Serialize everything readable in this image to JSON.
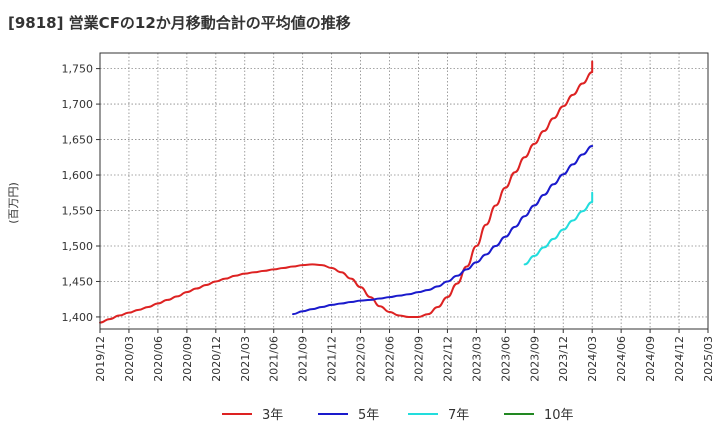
{
  "chart_data": {
    "type": "line",
    "title": "[9818]  営業CFの12か月移動合計の平均値の推移",
    "ylabel": "(百万円)",
    "xlabel": "",
    "ylim": [
      1383,
      1772
    ],
    "xlim": [
      "2019/12",
      "2025/03"
    ],
    "grid": true,
    "legend_placement": "bottom",
    "x_ticks": [
      "2019/12",
      "2020/03",
      "2020/06",
      "2020/09",
      "2020/12",
      "2021/03",
      "2021/06",
      "2021/09",
      "2021/12",
      "2022/03",
      "2022/06",
      "2022/09",
      "2022/12",
      "2023/03",
      "2023/06",
      "2023/09",
      "2023/12",
      "2024/03",
      "2024/06",
      "2024/09",
      "2024/12",
      "2025/03"
    ],
    "y_ticks": [
      1400,
      1450,
      1500,
      1550,
      1600,
      1650,
      1700,
      1750
    ],
    "y_tick_labels": [
      "1,400",
      "1,450",
      "1,500",
      "1,550",
      "1,600",
      "1,650",
      "1,700",
      "1,750"
    ],
    "series": [
      {
        "name": "3年",
        "color": "#dd2222",
        "points": [
          [
            "2019/12",
            1392
          ],
          [
            "2020/01",
            1397
          ],
          [
            "2020/02",
            1402
          ],
          [
            "2020/03",
            1406
          ],
          [
            "2020/04",
            1410
          ],
          [
            "2020/05",
            1414
          ],
          [
            "2020/06",
            1419
          ],
          [
            "2020/07",
            1424
          ],
          [
            "2020/08",
            1429
          ],
          [
            "2020/09",
            1435
          ],
          [
            "2020/10",
            1440
          ],
          [
            "2020/11",
            1445
          ],
          [
            "2020/12",
            1450
          ],
          [
            "2021/01",
            1454
          ],
          [
            "2021/02",
            1458
          ],
          [
            "2021/03",
            1461
          ],
          [
            "2021/04",
            1463
          ],
          [
            "2021/05",
            1465
          ],
          [
            "2021/06",
            1467
          ],
          [
            "2021/07",
            1469
          ],
          [
            "2021/08",
            1471
          ],
          [
            "2021/09",
            1473
          ],
          [
            "2021/10",
            1474
          ],
          [
            "2021/11",
            1473
          ],
          [
            "2021/12",
            1469
          ],
          [
            "2022/01",
            1463
          ],
          [
            "2022/02",
            1454
          ],
          [
            "2022/03",
            1442
          ],
          [
            "2022/04",
            1428
          ],
          [
            "2022/05",
            1415
          ],
          [
            "2022/06",
            1407
          ],
          [
            "2022/07",
            1402
          ],
          [
            "2022/08",
            1400
          ],
          [
            "2022/09",
            1400
          ],
          [
            "2022/10",
            1404
          ],
          [
            "2022/11",
            1414
          ],
          [
            "2022/12",
            1428
          ],
          [
            "2023/01",
            1447
          ],
          [
            "2023/02",
            1471
          ],
          [
            "2023/03",
            1500
          ],
          [
            "2023/04",
            1530
          ],
          [
            "2023/05",
            1557
          ],
          [
            "2023/06",
            1582
          ],
          [
            "2023/07",
            1604
          ],
          [
            "2023/08",
            1625
          ],
          [
            "2023/09",
            1644
          ],
          [
            "2023/10",
            1662
          ],
          [
            "2023/11",
            1680
          ],
          [
            "2023/12",
            1697
          ],
          [
            "2024/01",
            1713
          ],
          [
            "2024/02",
            1729
          ],
          [
            "2024/03",
            1745
          ],
          [
            "2024/03",
            1760
          ]
        ]
      },
      {
        "name": "5年",
        "color": "#1a1acc",
        "points": [
          [
            "2021/08",
            1404
          ],
          [
            "2021/09",
            1408
          ],
          [
            "2021/10",
            1411
          ],
          [
            "2021/11",
            1414
          ],
          [
            "2021/12",
            1417
          ],
          [
            "2022/01",
            1419
          ],
          [
            "2022/02",
            1421
          ],
          [
            "2022/03",
            1423
          ],
          [
            "2022/04",
            1424
          ],
          [
            "2022/05",
            1426
          ],
          [
            "2022/06",
            1428
          ],
          [
            "2022/07",
            1430
          ],
          [
            "2022/08",
            1432
          ],
          [
            "2022/09",
            1435
          ],
          [
            "2022/10",
            1438
          ],
          [
            "2022/11",
            1443
          ],
          [
            "2022/12",
            1450
          ],
          [
            "2023/01",
            1458
          ],
          [
            "2023/02",
            1467
          ],
          [
            "2023/03",
            1477
          ],
          [
            "2023/04",
            1488
          ],
          [
            "2023/05",
            1500
          ],
          [
            "2023/06",
            1513
          ],
          [
            "2023/07",
            1527
          ],
          [
            "2023/08",
            1542
          ],
          [
            "2023/09",
            1557
          ],
          [
            "2023/10",
            1572
          ],
          [
            "2023/11",
            1587
          ],
          [
            "2023/12",
            1601
          ],
          [
            "2024/01",
            1615
          ],
          [
            "2024/02",
            1629
          ],
          [
            "2024/03",
            1641
          ]
        ]
      },
      {
        "name": "7年",
        "color": "#22dddd",
        "points": [
          [
            "2023/08",
            1474
          ],
          [
            "2023/09",
            1486
          ],
          [
            "2023/10",
            1498
          ],
          [
            "2023/11",
            1510
          ],
          [
            "2023/12",
            1523
          ],
          [
            "2024/01",
            1536
          ],
          [
            "2024/02",
            1549
          ],
          [
            "2024/03",
            1562
          ],
          [
            "2024/03",
            1575
          ]
        ]
      },
      {
        "name": "10年",
        "color": "#228822",
        "points": []
      }
    ]
  }
}
